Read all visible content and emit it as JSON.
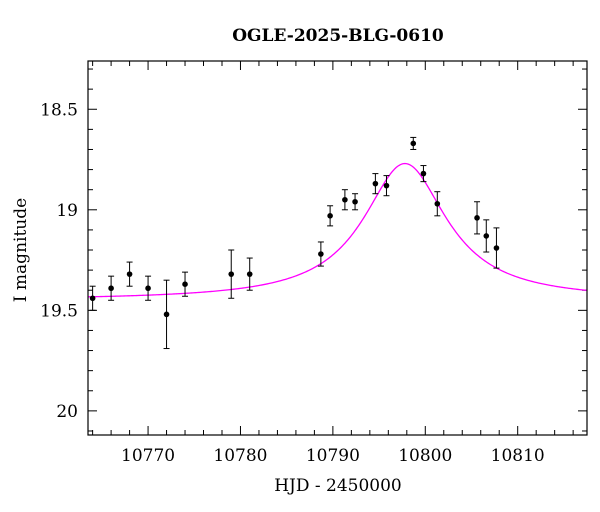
{
  "chart_data": {
    "type": "scatter",
    "title": "OGLE-2025-BLG-0610",
    "xlabel": "HJD - 2450000",
    "ylabel": "I magnitude",
    "xlim": [
      10763.5,
      10817.5
    ],
    "ylim": [
      20.12,
      18.26
    ],
    "y_inverted": true,
    "xticks": [
      10770,
      10780,
      10790,
      10800,
      10810
    ],
    "xtick_labels": [
      "10770",
      "10780",
      "10790",
      "10800",
      "10810"
    ],
    "yticks": [
      18.5,
      19,
      19.5,
      20
    ],
    "ytick_labels": [
      "18.5",
      "19",
      "19.5",
      "20"
    ],
    "grid": false,
    "series": [
      {
        "kind": "points-with-errorbars",
        "color": "#000000",
        "points": [
          {
            "x": 10764.0,
            "y": 19.44,
            "err": 0.06
          },
          {
            "x": 10766.0,
            "y": 19.39,
            "err": 0.06
          },
          {
            "x": 10768.0,
            "y": 19.32,
            "err": 0.06
          },
          {
            "x": 10770.0,
            "y": 19.39,
            "err": 0.06
          },
          {
            "x": 10772.0,
            "y": 19.52,
            "err": 0.17
          },
          {
            "x": 10774.0,
            "y": 19.37,
            "err": 0.06
          },
          {
            "x": 10779.0,
            "y": 19.32,
            "err": 0.12
          },
          {
            "x": 10781.0,
            "y": 19.32,
            "err": 0.08
          },
          {
            "x": 10788.7,
            "y": 19.22,
            "err": 0.06
          },
          {
            "x": 10789.7,
            "y": 19.03,
            "err": 0.05
          },
          {
            "x": 10791.3,
            "y": 18.95,
            "err": 0.05
          },
          {
            "x": 10792.4,
            "y": 18.96,
            "err": 0.04
          },
          {
            "x": 10794.6,
            "y": 18.87,
            "err": 0.05
          },
          {
            "x": 10795.8,
            "y": 18.88,
            "err": 0.05
          },
          {
            "x": 10798.7,
            "y": 18.67,
            "err": 0.03
          },
          {
            "x": 10799.8,
            "y": 18.82,
            "err": 0.04
          },
          {
            "x": 10801.3,
            "y": 18.97,
            "err": 0.06
          },
          {
            "x": 10805.6,
            "y": 19.04,
            "err": 0.08
          },
          {
            "x": 10806.6,
            "y": 19.13,
            "err": 0.08
          },
          {
            "x": 10807.7,
            "y": 19.19,
            "err": 0.1
          }
        ]
      },
      {
        "kind": "model-curve",
        "color": "#ff00ff",
        "baseline": 19.45,
        "peak_x": 10797.8,
        "peak_y": 18.77,
        "width": 5.5
      }
    ]
  }
}
